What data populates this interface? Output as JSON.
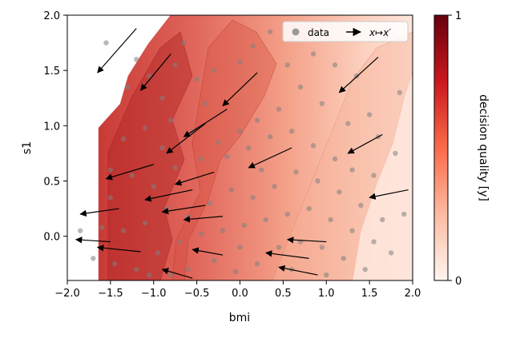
{
  "chart_data": {
    "type": "scatter",
    "title": "",
    "xlabel": "bmi",
    "ylabel": "s1",
    "xlim": [
      -2.0,
      2.0
    ],
    "ylim": [
      -0.4,
      2.0
    ],
    "xticks": [
      -2.0,
      -1.5,
      -1.0,
      -0.5,
      0.0,
      0.5,
      1.0,
      1.5,
      2.0
    ],
    "xtick_labels": [
      "−2.0",
      "−1.5",
      "−1.0",
      "−0.5",
      "0.0",
      "0.5",
      "1.0",
      "1.5",
      "2.0"
    ],
    "yticks": [
      0.0,
      0.5,
      1.0,
      1.5,
      2.0
    ],
    "ytick_labels": [
      "0.0",
      "0.5",
      "1.0",
      "1.5",
      "2.0"
    ],
    "grid": false,
    "legend": {
      "placement": "top-right",
      "entries": [
        {
          "label": "data",
          "marker": "circle",
          "color": "#8a8a8a"
        },
        {
          "label": "x↦x′",
          "marker": "arrow",
          "color": "#000000"
        }
      ]
    },
    "colorbar": {
      "label": "decision quality [y]",
      "ticks": [
        0,
        1
      ],
      "tick_labels": [
        "0",
        "1"
      ],
      "colormap": "Reds",
      "colors": [
        "#fff5f0",
        "#fcbba1",
        "#fb6a4a",
        "#cb181d",
        "#67000d"
      ]
    },
    "arrows": [
      {
        "from": [
          -1.2,
          1.88
        ],
        "to": [
          -1.65,
          1.48
        ]
      },
      {
        "from": [
          -0.8,
          1.65
        ],
        "to": [
          -1.15,
          1.32
        ]
      },
      {
        "from": [
          0.2,
          1.48
        ],
        "to": [
          -0.2,
          1.18
        ]
      },
      {
        "from": [
          -0.15,
          1.15
        ],
        "to": [
          -0.65,
          0.9
        ]
      },
      {
        "from": [
          -0.4,
          1.02
        ],
        "to": [
          -0.85,
          0.75
        ]
      },
      {
        "from": [
          -1.0,
          0.65
        ],
        "to": [
          -1.55,
          0.52
        ]
      },
      {
        "from": [
          -0.3,
          0.58
        ],
        "to": [
          -0.75,
          0.47
        ]
      },
      {
        "from": [
          -0.55,
          0.42
        ],
        "to": [
          -1.1,
          0.33
        ]
      },
      {
        "from": [
          -0.4,
          0.28
        ],
        "to": [
          -0.9,
          0.22
        ]
      },
      {
        "from": [
          -1.4,
          0.25
        ],
        "to": [
          -1.85,
          0.2
        ]
      },
      {
        "from": [
          -0.2,
          0.18
        ],
        "to": [
          -0.65,
          0.15
        ]
      },
      {
        "from": [
          0.6,
          0.8
        ],
        "to": [
          0.1,
          0.62
        ]
      },
      {
        "from": [
          1.6,
          1.62
        ],
        "to": [
          1.15,
          1.3
        ]
      },
      {
        "from": [
          1.65,
          0.92
        ],
        "to": [
          1.25,
          0.75
        ]
      },
      {
        "from": [
          1.95,
          0.42
        ],
        "to": [
          1.5,
          0.35
        ]
      },
      {
        "from": [
          -1.5,
          -0.05
        ],
        "to": [
          -1.9,
          -0.03
        ]
      },
      {
        "from": [
          -1.15,
          -0.14
        ],
        "to": [
          -1.65,
          -0.1
        ]
      },
      {
        "from": [
          -0.2,
          -0.17
        ],
        "to": [
          -0.55,
          -0.12
        ]
      },
      {
        "from": [
          0.8,
          -0.2
        ],
        "to": [
          0.3,
          -0.15
        ]
      },
      {
        "from": [
          1.0,
          -0.05
        ],
        "to": [
          0.55,
          -0.03
        ]
      },
      {
        "from": [
          0.9,
          -0.35
        ],
        "to": [
          0.45,
          -0.28
        ]
      },
      {
        "from": [
          -0.55,
          -0.38
        ],
        "to": [
          -0.9,
          -0.3
        ]
      }
    ],
    "points": [
      [
        -1.55,
        1.75
      ],
      [
        -1.2,
        1.6
      ],
      [
        -1.3,
        1.35
      ],
      [
        -1.05,
        1.45
      ],
      [
        -0.9,
        1.25
      ],
      [
        -0.75,
        1.55
      ],
      [
        -0.5,
        1.42
      ],
      [
        -0.3,
        1.5
      ],
      [
        0.0,
        1.58
      ],
      [
        0.15,
        1.72
      ],
      [
        0.35,
        1.85
      ],
      [
        0.6,
        1.78
      ],
      [
        0.85,
        1.65
      ],
      [
        1.1,
        1.55
      ],
      [
        1.35,
        1.45
      ],
      [
        1.7,
        1.8
      ],
      [
        1.85,
        1.3
      ],
      [
        1.5,
        1.1
      ],
      [
        1.25,
        1.02
      ],
      [
        0.95,
        1.2
      ],
      [
        0.7,
        1.35
      ],
      [
        0.45,
        1.15
      ],
      [
        0.2,
        1.05
      ],
      [
        0.0,
        0.95
      ],
      [
        -0.25,
        0.85
      ],
      [
        -0.55,
        0.95
      ],
      [
        -0.8,
        1.05
      ],
      [
        -1.1,
        0.98
      ],
      [
        -1.35,
        0.88
      ],
      [
        -1.5,
        0.6
      ],
      [
        -1.25,
        0.55
      ],
      [
        -1.0,
        0.45
      ],
      [
        -0.75,
        0.62
      ],
      [
        -0.45,
        0.7
      ],
      [
        -0.15,
        0.72
      ],
      [
        0.1,
        0.8
      ],
      [
        0.35,
        0.9
      ],
      [
        0.6,
        0.95
      ],
      [
        0.85,
        0.82
      ],
      [
        1.1,
        0.7
      ],
      [
        1.3,
        0.6
      ],
      [
        1.55,
        0.55
      ],
      [
        1.8,
        0.75
      ],
      [
        1.9,
        0.2
      ],
      [
        1.65,
        0.15
      ],
      [
        1.4,
        0.28
      ],
      [
        1.15,
        0.4
      ],
      [
        0.9,
        0.5
      ],
      [
        0.65,
        0.58
      ],
      [
        0.4,
        0.45
      ],
      [
        0.15,
        0.35
      ],
      [
        -0.1,
        0.42
      ],
      [
        -0.35,
        0.3
      ],
      [
        -0.6,
        0.18
      ],
      [
        -0.85,
        0.25
      ],
      [
        -1.1,
        0.12
      ],
      [
        -1.35,
        0.05
      ],
      [
        -1.6,
        0.08
      ],
      [
        -1.85,
        0.05
      ],
      [
        -1.7,
        -0.2
      ],
      [
        -1.45,
        -0.25
      ],
      [
        -1.2,
        -0.3
      ],
      [
        -0.95,
        -0.15
      ],
      [
        -0.7,
        -0.05
      ],
      [
        -0.45,
        0.02
      ],
      [
        -0.2,
        0.05
      ],
      [
        0.05,
        0.1
      ],
      [
        0.3,
        0.15
      ],
      [
        0.55,
        0.2
      ],
      [
        0.8,
        0.25
      ],
      [
        1.05,
        0.15
      ],
      [
        1.3,
        0.05
      ],
      [
        1.55,
        -0.05
      ],
      [
        1.75,
        -0.15
      ],
      [
        1.45,
        -0.3
      ],
      [
        1.2,
        -0.2
      ],
      [
        0.95,
        -0.1
      ],
      [
        0.7,
        -0.05
      ],
      [
        0.45,
        -0.1
      ],
      [
        0.2,
        -0.25
      ],
      [
        -0.05,
        -0.32
      ],
      [
        -0.3,
        -0.22
      ],
      [
        -0.6,
        -0.3
      ],
      [
        -0.8,
        -0.35
      ],
      [
        -1.05,
        -0.35
      ],
      [
        -0.4,
        1.2
      ],
      [
        0.55,
        1.55
      ],
      [
        1.0,
        1.85
      ],
      [
        -0.65,
        1.75
      ],
      [
        0.25,
        0.6
      ],
      [
        1.6,
        0.9
      ],
      [
        0.0,
        -0.1
      ],
      [
        0.6,
        -0.3
      ],
      [
        1.0,
        -0.35
      ],
      [
        -1.5,
        0.35
      ],
      [
        -0.9,
        0.8
      ]
    ]
  }
}
